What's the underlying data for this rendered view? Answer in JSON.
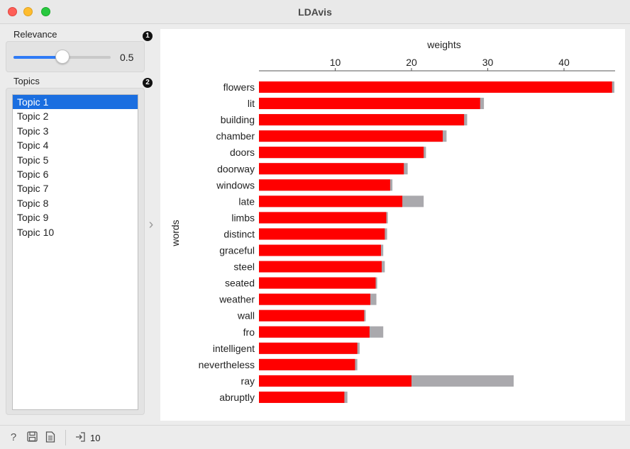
{
  "window": {
    "title": "LDAvis"
  },
  "relevance": {
    "label": "Relevance",
    "badge": "1",
    "value": 0.5,
    "value_label": "0.5"
  },
  "topics": {
    "label": "Topics",
    "badge": "2",
    "selected_index": 0,
    "items": [
      "Topic 1",
      "Topic 2",
      "Topic 3",
      "Topic 4",
      "Topic 5",
      "Topic 6",
      "Topic 7",
      "Topic 8",
      "Topic 9",
      "Topic 10"
    ]
  },
  "statusbar": {
    "output_count": "10"
  },
  "colors": {
    "term_weight": "#ff0000",
    "overall_weight": "#aaa9ad",
    "selection": "#1a6ee0",
    "slider_accent": "#2f7bf6"
  },
  "chart_data": {
    "type": "bar",
    "orientation": "horizontal",
    "xlabel": "weights",
    "ylabel": "words",
    "x_axis_position": "top",
    "xlim": [
      0,
      46.7
    ],
    "xticks": [
      10,
      20,
      30,
      40
    ],
    "categories": [
      "flowers",
      "lit",
      "building",
      "chamber",
      "doors",
      "doorway",
      "windows",
      "late",
      "limbs",
      "distinct",
      "graceful",
      "steel",
      "seated",
      "weather",
      "wall",
      "fro",
      "intelligent",
      "nevertheless",
      "ray",
      "abruptly"
    ],
    "series": [
      {
        "values": [
          46.3,
          29.0,
          26.9,
          24.1,
          21.6,
          19.0,
          17.2,
          18.8,
          16.7,
          16.5,
          16.0,
          16.1,
          15.3,
          14.6,
          13.8,
          14.5,
          12.9,
          12.6,
          20.0,
          11.2
        ]
      },
      {
        "values": [
          46.6,
          29.5,
          27.3,
          24.6,
          21.9,
          19.5,
          17.5,
          21.6,
          16.9,
          16.8,
          16.3,
          16.5,
          15.5,
          15.4,
          14.0,
          16.3,
          13.2,
          12.9,
          33.4,
          11.6
        ]
      }
    ]
  }
}
